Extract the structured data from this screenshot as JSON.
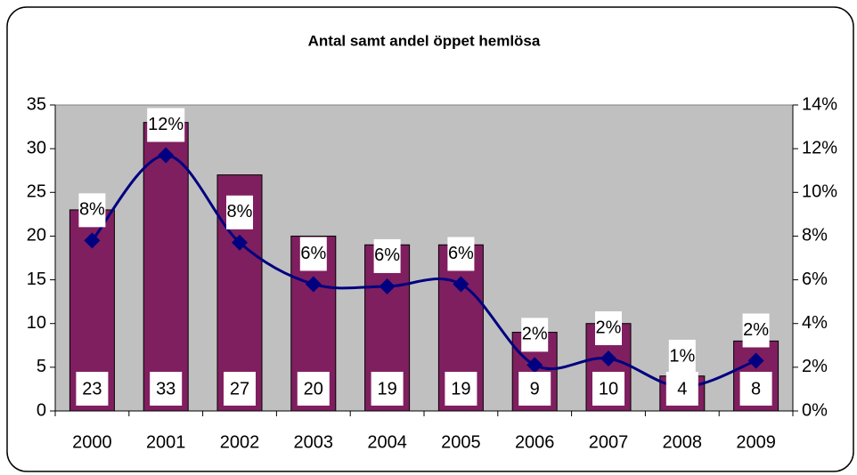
{
  "chart_data": {
    "type": "bar",
    "title": "Antal samt andel öppet hemlösa",
    "categories": [
      "2000",
      "2001",
      "2002",
      "2003",
      "2004",
      "2005",
      "2006",
      "2007",
      "2008",
      "2009"
    ],
    "series": [
      {
        "name": "Antal",
        "color": "#7f1f5f",
        "values": [
          23,
          33,
          27,
          20,
          19,
          19,
          9,
          10,
          4,
          8
        ]
      },
      {
        "name": "Andel",
        "type": "line",
        "axis": "y2",
        "color": "#000080",
        "values": [
          7.8,
          11.7,
          7.7,
          5.8,
          5.7,
          5.8,
          2.1,
          2.4,
          1.1,
          2.3
        ],
        "value_labels": [
          "8%",
          "12%",
          "8%",
          "6%",
          "6%",
          "6%",
          "2%",
          "2%",
          "1%",
          "2%"
        ]
      }
    ],
    "ylim": [
      0,
      35
    ],
    "yticks": [
      0,
      5,
      10,
      15,
      20,
      25,
      30,
      35
    ],
    "y2lim": [
      0,
      14
    ],
    "y2ticks": [
      {
        "value": 0,
        "label": "0%"
      },
      {
        "value": 2,
        "label": "2%"
      },
      {
        "value": 4,
        "label": "4%"
      },
      {
        "value": 6,
        "label": "6%"
      },
      {
        "value": 8,
        "label": "8%"
      },
      {
        "value": 10,
        "label": "10%"
      },
      {
        "value": 12,
        "label": "12%"
      },
      {
        "value": 14,
        "label": "14%"
      }
    ],
    "plot_background": "#c0c0c0"
  }
}
